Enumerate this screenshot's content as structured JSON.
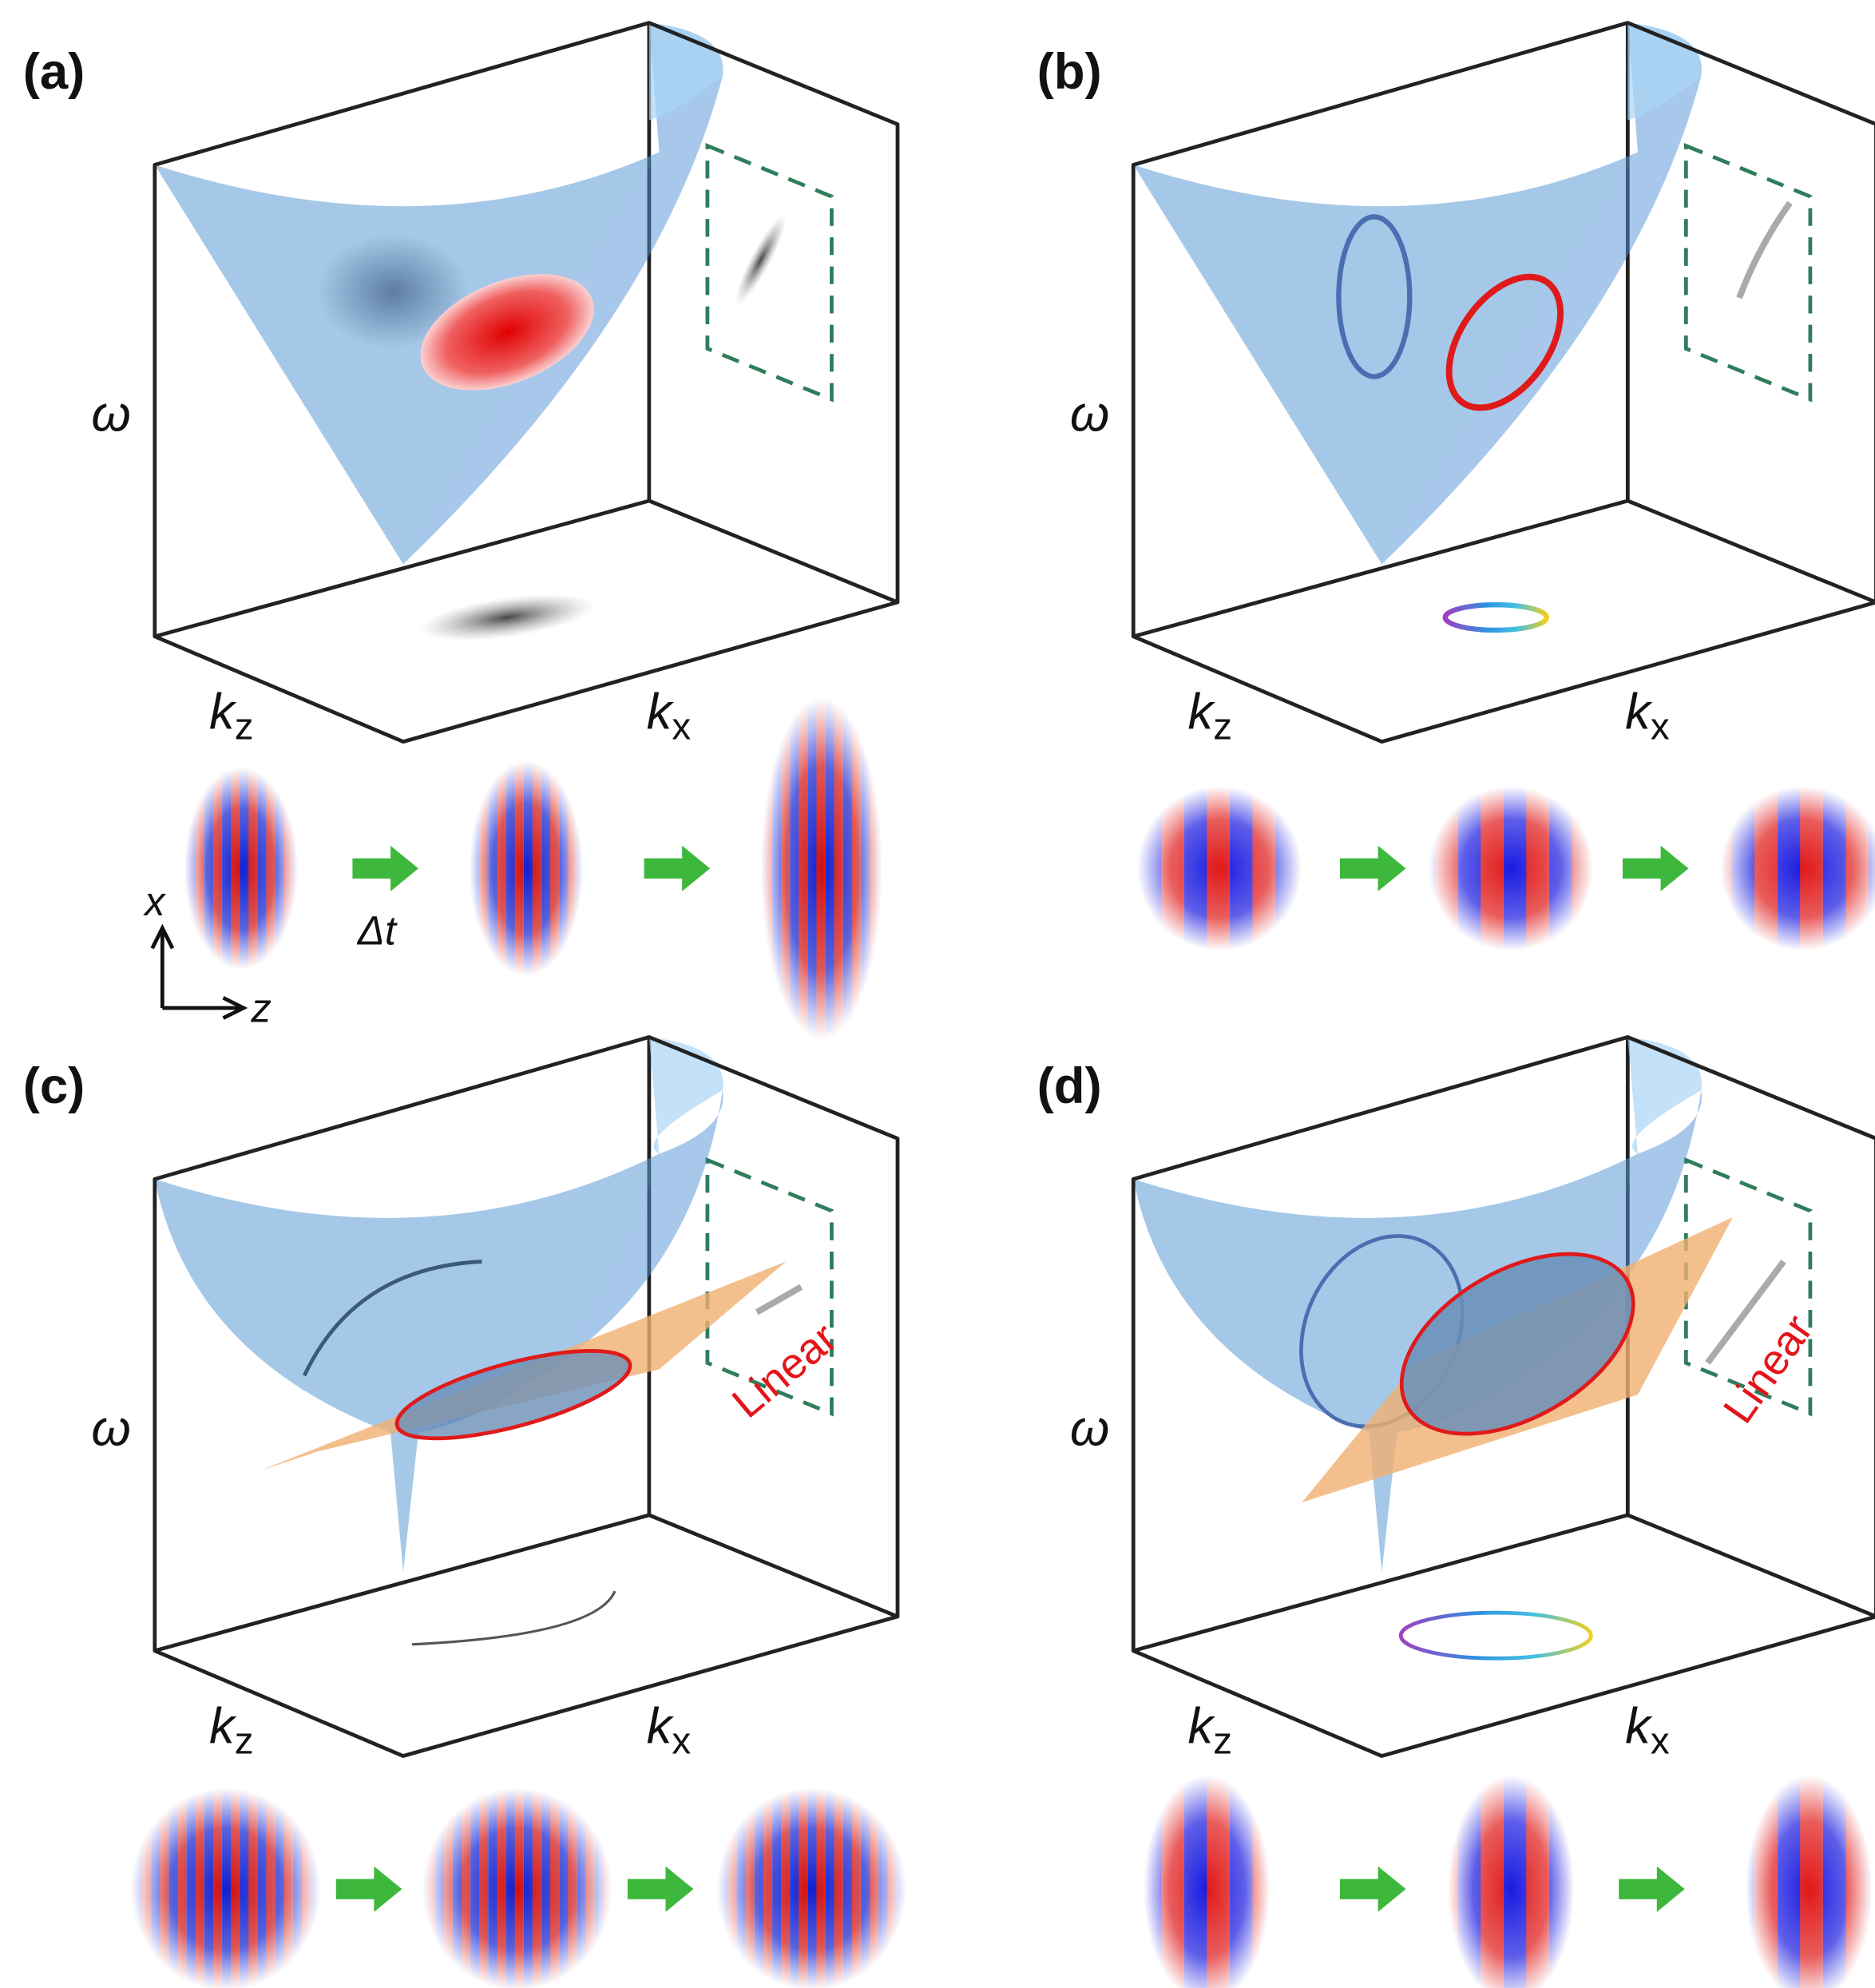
{
  "panels": [
    {
      "label": "(a)",
      "omega": "ω",
      "kz": {
        "symbol": "k",
        "subscript": "z"
      },
      "kx": {
        "symbol": "k",
        "subscript": "x"
      }
    },
    {
      "label": "(b)",
      "omega": "ω",
      "kz": {
        "symbol": "k",
        "subscript": "z"
      },
      "kx": {
        "symbol": "k",
        "subscript": "x"
      }
    },
    {
      "label": "(c)",
      "omega": "ω",
      "kz": {
        "symbol": "k",
        "subscript": "z"
      },
      "kx": {
        "symbol": "k",
        "subscript": "x"
      },
      "annotation": "Linear"
    },
    {
      "label": "(d)",
      "omega": "ω",
      "kz": {
        "symbol": "k",
        "subscript": "z"
      },
      "kx": {
        "symbol": "k",
        "subscript": "x"
      },
      "annotation": "Linear"
    }
  ],
  "axes_legend": {
    "x": "x",
    "z": "z",
    "step": "Δt"
  }
}
